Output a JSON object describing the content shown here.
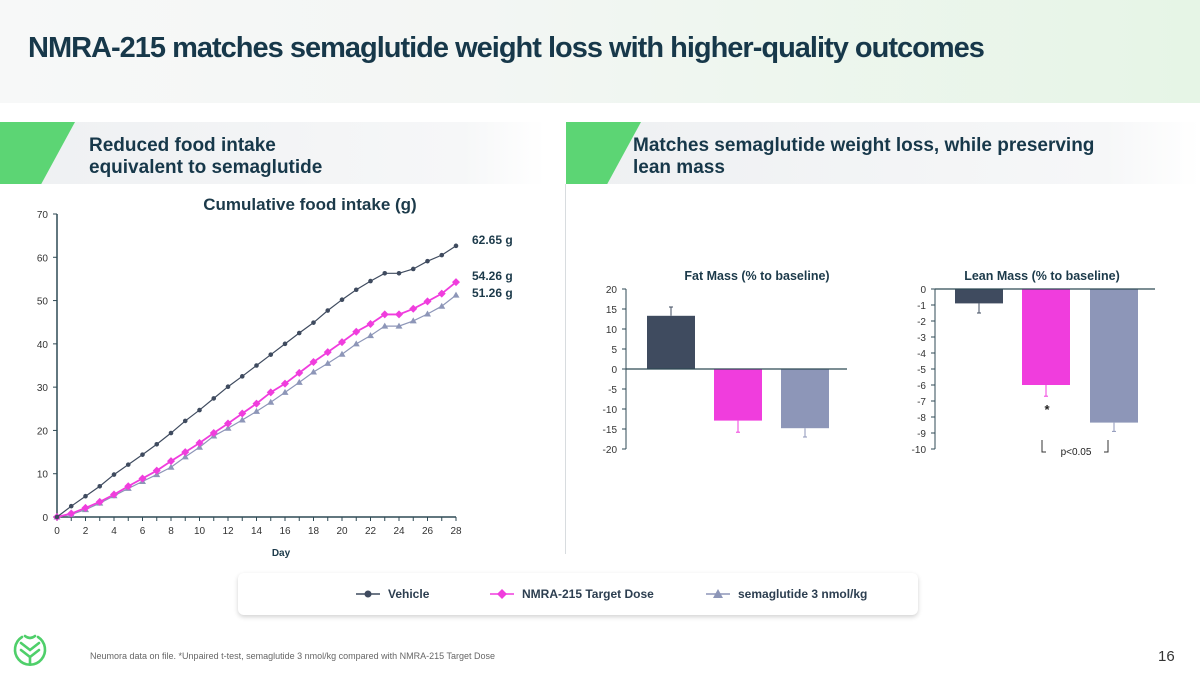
{
  "title": "NMRA-215 matches semaglutide weight loss with higher-quality outcomes",
  "sections": {
    "left": "Reduced food intake\nequivalent to semaglutide",
    "right": "Matches semaglutide weight loss, while preserving\nlean mass"
  },
  "legend": [
    "Vehicle",
    "NMRA-215 Target Dose",
    "semaglutide 3 nmol/kg"
  ],
  "footnote": "Neumora data on file. *Unpaired t-test, semaglutide 3 nmol/kg compared with NMRA-215 Target Dose",
  "page_number": "16",
  "colors": {
    "vehicle": "#3f4b5f",
    "nmra": "#f03ddd",
    "sema": "#8d96b8",
    "accent": "#5cd574",
    "title": "#17384a"
  },
  "chart_data": [
    {
      "type": "line",
      "title": "Cumulative food intake (g)",
      "xlabel": "Day",
      "ylabel": "",
      "xlim": [
        0,
        28
      ],
      "ylim": [
        0,
        70
      ],
      "xticks": [
        0,
        2,
        4,
        6,
        8,
        10,
        12,
        14,
        16,
        18,
        20,
        22,
        24,
        26,
        28
      ],
      "yticks": [
        0,
        10,
        20,
        30,
        40,
        50,
        60,
        70
      ],
      "x": [
        0,
        1,
        2,
        3,
        4,
        5,
        6,
        7,
        8,
        9,
        10,
        11,
        12,
        13,
        14,
        15,
        16,
        17,
        18,
        19,
        20,
        21,
        22,
        23,
        24,
        25,
        26,
        27,
        28
      ],
      "series": [
        {
          "name": "Vehicle",
          "marker": "circle",
          "end_label": "62.65 g",
          "values": [
            0,
            2.5,
            4.8,
            7.1,
            9.8,
            12.1,
            14.4,
            16.8,
            19.4,
            22.2,
            24.7,
            27.4,
            30.1,
            32.5,
            35,
            37.5,
            40,
            42.5,
            44.9,
            47.7,
            50.2,
            52.5,
            54.5,
            56.3,
            56.3,
            57.3,
            59.1,
            60.5,
            62.65
          ]
        },
        {
          "name": "NMRA-215 Target Dose",
          "marker": "diamond",
          "end_label": "54.26 g",
          "values": [
            0,
            0.8,
            2.1,
            3.5,
            5.2,
            7.1,
            8.9,
            10.7,
            12.9,
            15,
            17.1,
            19.4,
            21.6,
            23.9,
            26.2,
            28.8,
            30.8,
            33.3,
            35.8,
            38.1,
            40.4,
            42.8,
            44.6,
            46.8,
            46.8,
            48.1,
            49.8,
            51.6,
            54.26
          ]
        },
        {
          "name": "semaglutide 3 nmol/kg",
          "marker": "triangle",
          "end_label": "51.26 g",
          "values": [
            0,
            0.6,
            1.7,
            3.2,
            4.9,
            6.6,
            8.2,
            9.8,
            11.5,
            13.9,
            16.1,
            18.7,
            20.5,
            22.4,
            24.4,
            26.5,
            28.8,
            31.1,
            33.5,
            35.5,
            37.6,
            40,
            41.9,
            44.1,
            44.1,
            45.3,
            46.9,
            48.7,
            51.26
          ]
        }
      ],
      "grid": false
    },
    {
      "type": "bar",
      "title": "Fat Mass (% to baseline)",
      "categories": [
        "Vehicle",
        "NMRA-215 Target Dose",
        "semaglutide 3 nmol/kg"
      ],
      "values": [
        13.3,
        -12.9,
        -14.8
      ],
      "error_ends": [
        15.5,
        -15.8,
        -17
      ],
      "ylim": [
        -20,
        20
      ],
      "yticks": [
        20,
        15,
        10,
        5,
        0,
        -5,
        -10,
        -15,
        -20
      ]
    },
    {
      "type": "bar",
      "title": "Lean Mass (% to baseline)",
      "categories": [
        "Vehicle",
        "NMRA-215 Target Dose",
        "semaglutide 3 nmol/kg"
      ],
      "values": [
        -0.9,
        -6.0,
        -8.35
      ],
      "error_ends": [
        -1.5,
        -6.7,
        -8.9
      ],
      "ylim": [
        -10,
        0
      ],
      "yticks": [
        0,
        -1,
        -2,
        -3,
        -4,
        -5,
        -6,
        -7,
        -8,
        -9,
        -10
      ],
      "annotations": {
        "star": "*",
        "pvalue": "p<0.05"
      }
    }
  ]
}
